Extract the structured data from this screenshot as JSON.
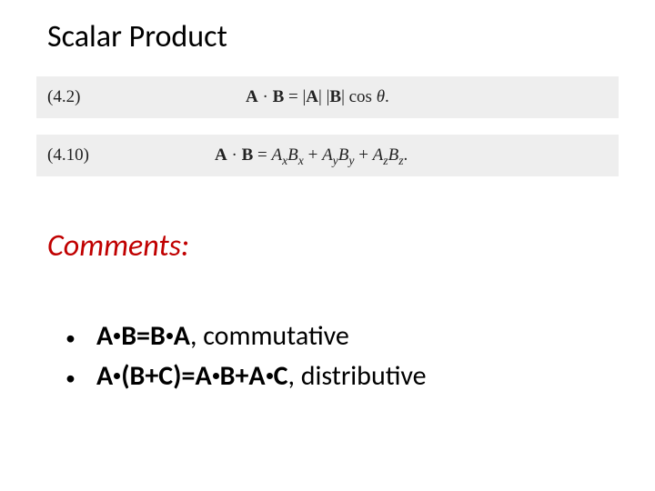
{
  "title": "Scalar Product",
  "equation_block_bg": "#eeeeee",
  "equations": {
    "eq1": {
      "number": "(4.2)"
    },
    "eq2": {
      "number": "(4.10)"
    }
  },
  "comments_title": "Comments:",
  "comments_title_color": "#c00000",
  "bullets": {
    "b1": {
      "formula": "A∙B=B∙A",
      "sep": ", ",
      "word": "commutative"
    },
    "b2": {
      "formula": "A∙(B+C)=A∙B+A∙C",
      "sep": ", ",
      "word": "distributive"
    }
  }
}
